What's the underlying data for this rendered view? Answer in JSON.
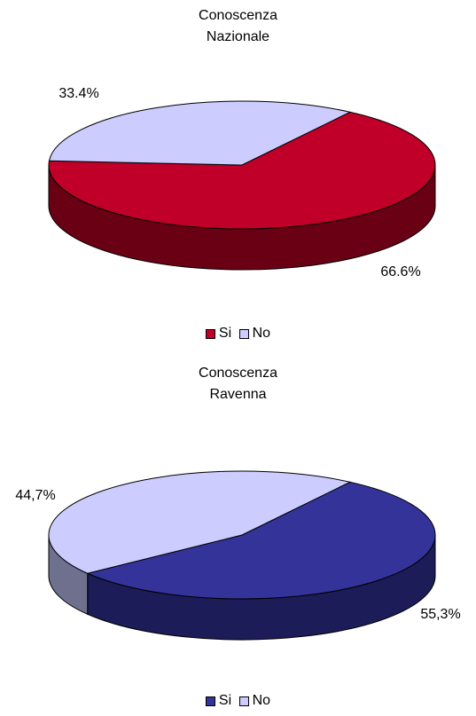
{
  "chart_data": [
    {
      "type": "pie",
      "title_lines": [
        "Conoscenza",
        "Nazionale"
      ],
      "slices": [
        {
          "label": "Si",
          "value": 66.6,
          "value_label": "66.6%",
          "color": "#C00028",
          "side_color": "#6A0014"
        },
        {
          "label": "No",
          "value": 33.4,
          "value_label": "33.4%",
          "color": "#CCCCFF",
          "side_color": "#7B7B9C"
        }
      ],
      "legend": [
        "Si",
        "No"
      ],
      "legend_position": "bottom",
      "style": "3d"
    },
    {
      "type": "pie",
      "title_lines": [
        "Conoscenza",
        "Ravenna"
      ],
      "slices": [
        {
          "label": "Si",
          "value": 55.3,
          "value_label": "55,3%",
          "color": "#333399",
          "side_color": "#1C1C58"
        },
        {
          "label": "No",
          "value": 44.7,
          "value_label": "44,7%",
          "color": "#CCCCFF",
          "side_color": "#6F6F8E"
        }
      ],
      "legend": [
        "Si",
        "No"
      ],
      "legend_position": "bottom",
      "style": "3d"
    }
  ]
}
